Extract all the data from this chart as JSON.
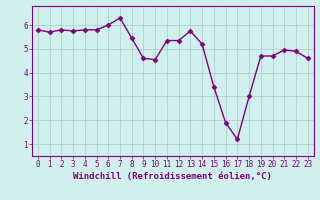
{
  "xlabel": "Windchill (Refroidissement éolien,°C)",
  "x": [
    0,
    1,
    2,
    3,
    4,
    5,
    6,
    7,
    8,
    9,
    10,
    11,
    12,
    13,
    14,
    15,
    16,
    17,
    18,
    19,
    20,
    21,
    22,
    23
  ],
  "y": [
    5.8,
    5.7,
    5.8,
    5.75,
    5.8,
    5.8,
    6.0,
    6.3,
    5.45,
    4.6,
    4.55,
    5.35,
    5.35,
    5.75,
    5.2,
    3.4,
    1.9,
    1.2,
    3.0,
    4.7,
    4.7,
    4.95,
    4.9,
    4.6
  ],
  "line_color": "#800080",
  "marker": "D",
  "markersize": 2.5,
  "linewidth": 1.0,
  "bg_color": "#cff0ec",
  "grid_color": "#aacccc",
  "ylim": [
    0.5,
    6.8
  ],
  "xlim": [
    -0.5,
    23.5
  ],
  "yticks": [
    1,
    2,
    3,
    4,
    5,
    6
  ],
  "xticks": [
    0,
    1,
    2,
    3,
    4,
    5,
    6,
    7,
    8,
    9,
    10,
    11,
    12,
    13,
    14,
    15,
    16,
    17,
    18,
    19,
    20,
    21,
    22,
    23
  ],
  "tick_label_fontsize": 5.5,
  "xlabel_fontsize": 6.5
}
